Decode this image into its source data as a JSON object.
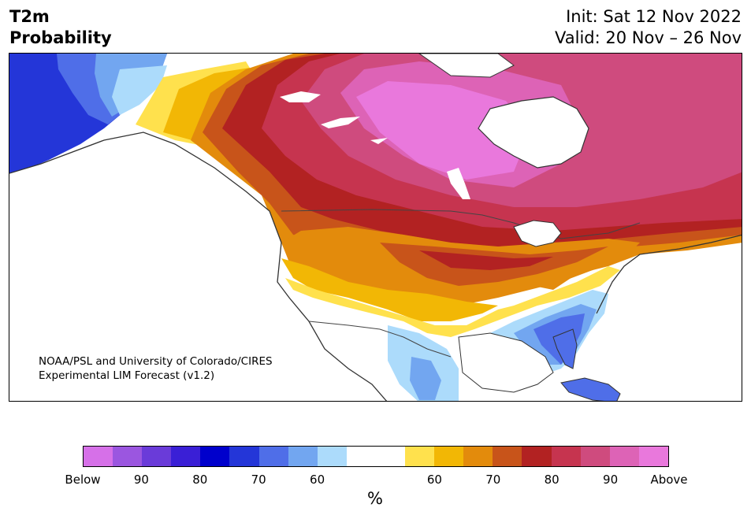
{
  "header": {
    "title_line1": "T2m",
    "title_line2": "Probability",
    "init": "Init: Sat 12 Nov 2022",
    "valid": "Valid: 20 Nov – 26 Nov"
  },
  "credit": {
    "line1": "NOAA/PSL and University of Colorado/CIRES",
    "line2": "Experimental LIM Forecast (v1.2)"
  },
  "colorbar": {
    "colors": [
      "#d670e8",
      "#9b56e0",
      "#6a3bd9",
      "#3a1fd6",
      "#0000cc",
      "#2436d8",
      "#4f6ee8",
      "#72a6f0",
      "#acdbfb",
      "#ffffff",
      "#ffffff",
      "#ffe14d",
      "#f2b705",
      "#e38b0c",
      "#c8541a",
      "#b22222",
      "#c6344f",
      "#cf4b7e",
      "#dd63b6",
      "#e978dc"
    ],
    "ticks": [
      "Below",
      "90",
      "80",
      "70",
      "60",
      "60",
      "70",
      "80",
      "90",
      "Above"
    ],
    "unit": "%"
  },
  "map": {
    "regions": "North America",
    "colors": {
      "ocean": "#ffffff",
      "land_neutral": "#ffffff",
      "coastline": "#333333",
      "border": "#444444"
    }
  }
}
